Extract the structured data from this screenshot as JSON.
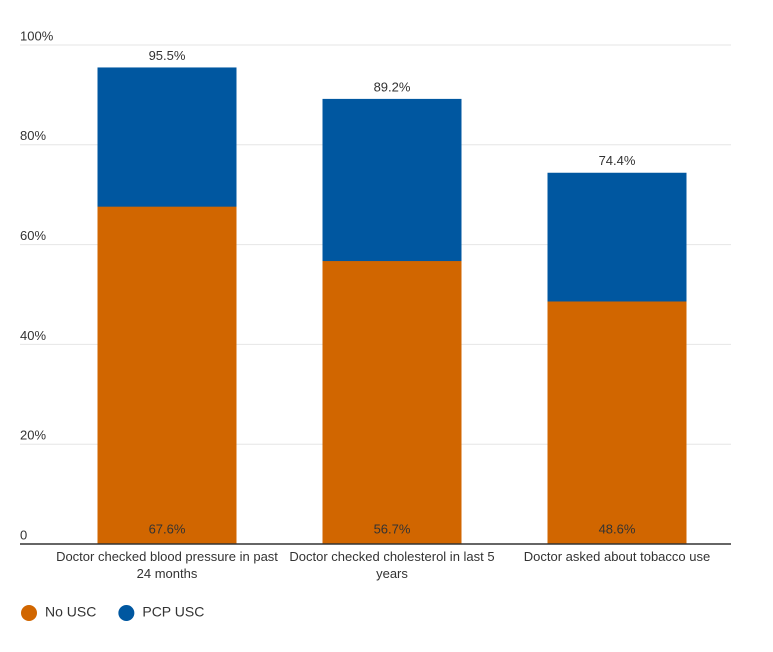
{
  "chart_data": {
    "type": "bar",
    "barmode": "overlay",
    "categories": [
      "Doctor checked blood pressure in past 24 months",
      "Doctor checked cholesterol in last 5 years",
      "Doctor asked about tobacco use"
    ],
    "series": [
      {
        "name": "PCP USC",
        "color": "#0057a0",
        "values": [
          95.5,
          89.2,
          74.4
        ],
        "value_labels": [
          "95.5%",
          "89.2%",
          "74.4%"
        ]
      },
      {
        "name": "No USC",
        "color": "#d16600",
        "values": [
          67.6,
          56.7,
          48.6
        ],
        "value_labels": [
          "67.6%",
          "56.7%",
          "48.6%"
        ]
      }
    ],
    "legend_order": [
      1,
      0
    ],
    "ylim": [
      0,
      100
    ],
    "yticks": [
      0,
      {
        "value": 20,
        "label": "20%"
      },
      {
        "value": 40,
        "label": "40%"
      },
      {
        "value": 60,
        "label": "60%"
      },
      {
        "value": 80,
        "label": "80%"
      },
      {
        "value": 100,
        "label": "100%"
      }
    ],
    "grid": true
  }
}
